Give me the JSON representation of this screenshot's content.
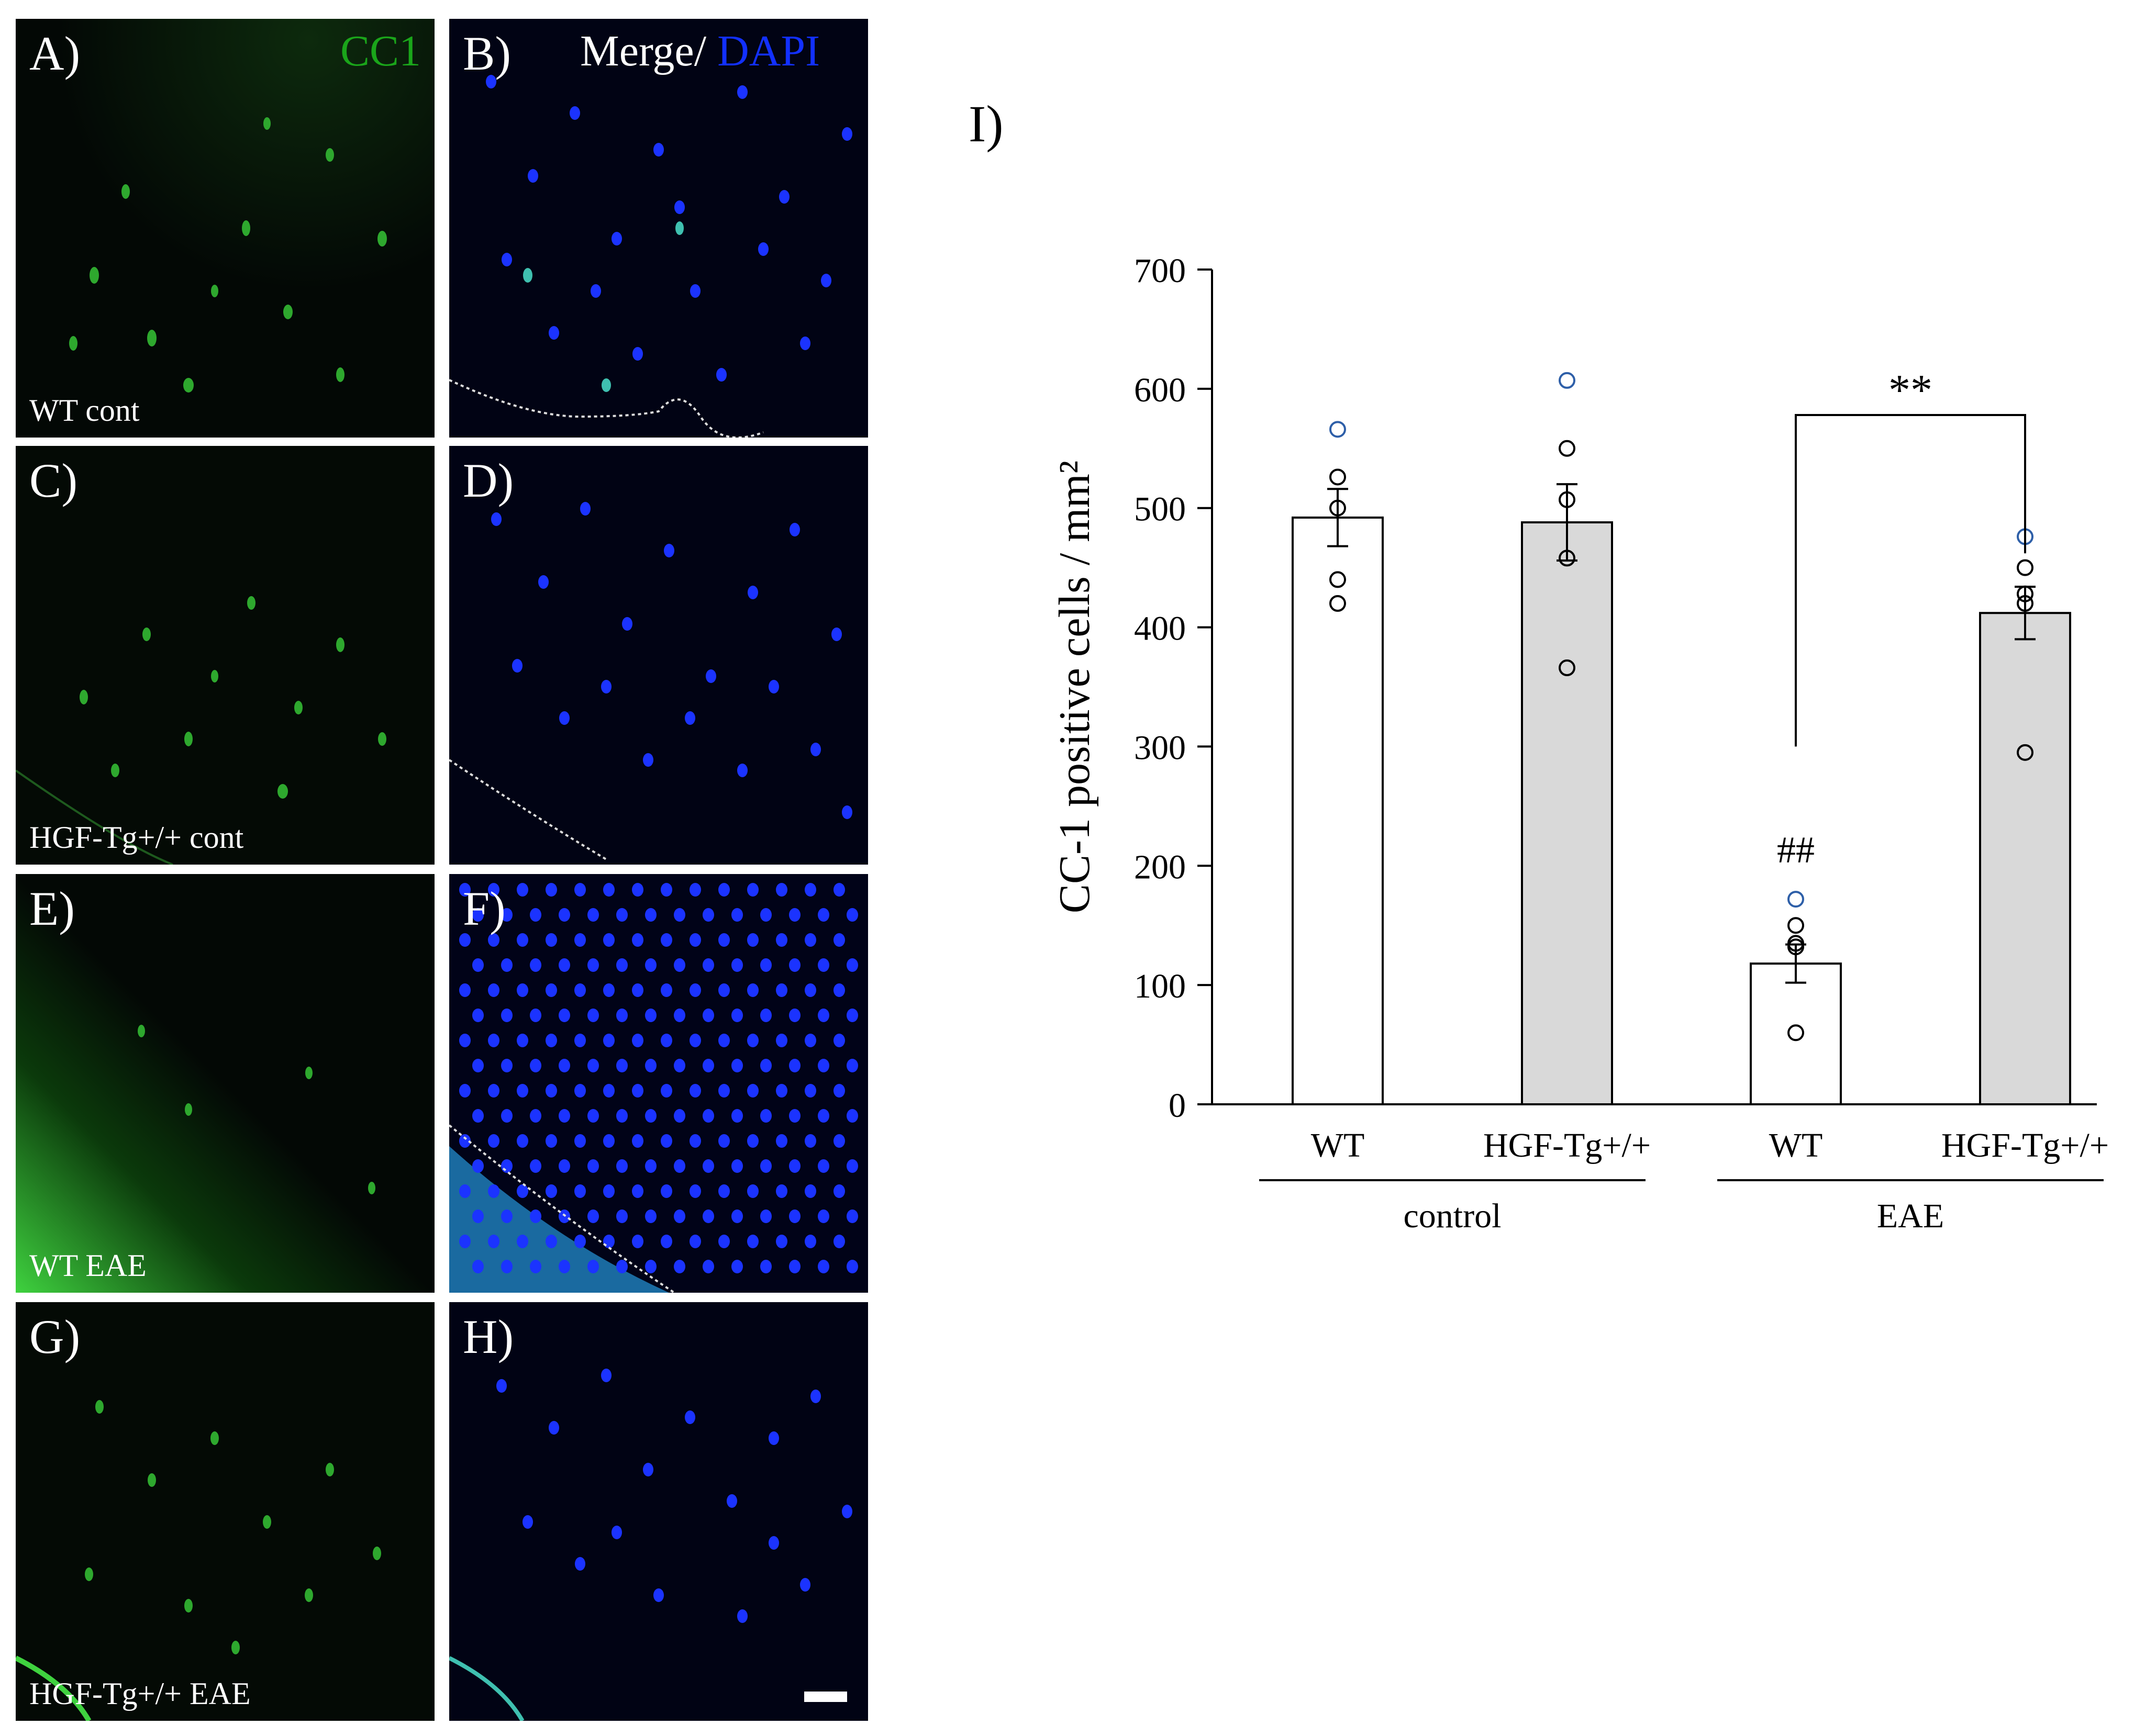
{
  "panels": [
    {
      "label": "A)",
      "group_label": "WT cont",
      "channel_green": "CC1"
    },
    {
      "label": "B)",
      "channel_merge": "Merge/",
      "channel_blue": "DAPI"
    },
    {
      "label": "C)",
      "group_label": "HGF-Tg+/+ cont"
    },
    {
      "label": "D)"
    },
    {
      "label": "E)",
      "group_label": "WT EAE"
    },
    {
      "label": "F)"
    },
    {
      "label": "G)",
      "group_label": "HGF-Tg+/+ EAE"
    },
    {
      "label": "H)"
    }
  ],
  "colors": {
    "cc1": "#1aa51a",
    "dapi": "#1230ff",
    "bar_wt": "#ffffff",
    "bar_tg": "#d9d9d9",
    "highlight_dot": "#2e5fa8"
  },
  "chart_data": {
    "type": "bar",
    "panel_label": "I)",
    "ylabel": "CC-1 positive cells / mm²",
    "ylim": [
      0,
      700
    ],
    "yticks": [
      0,
      100,
      200,
      300,
      400,
      500,
      600,
      700
    ],
    "categories": [
      "WT",
      "HGF-Tg+/+",
      "WT",
      "HGF-Tg+/+"
    ],
    "groups": [
      {
        "label": "control",
        "categories": [
          0,
          1
        ]
      },
      {
        "label": "EAE",
        "categories": [
          2,
          3
        ]
      }
    ],
    "values": [
      492,
      488,
      118,
      412
    ],
    "errors": [
      24,
      32,
      16,
      22
    ],
    "points": [
      [
        566,
        526,
        500,
        440,
        420
      ],
      [
        607,
        550,
        507,
        458,
        366
      ],
      [
        172,
        150,
        135,
        132,
        60
      ],
      [
        476,
        450,
        428,
        420,
        295
      ]
    ],
    "annotations": [
      {
        "text": "##",
        "category": 2
      },
      {
        "text": "**",
        "between": [
          2,
          3
        ]
      }
    ]
  }
}
